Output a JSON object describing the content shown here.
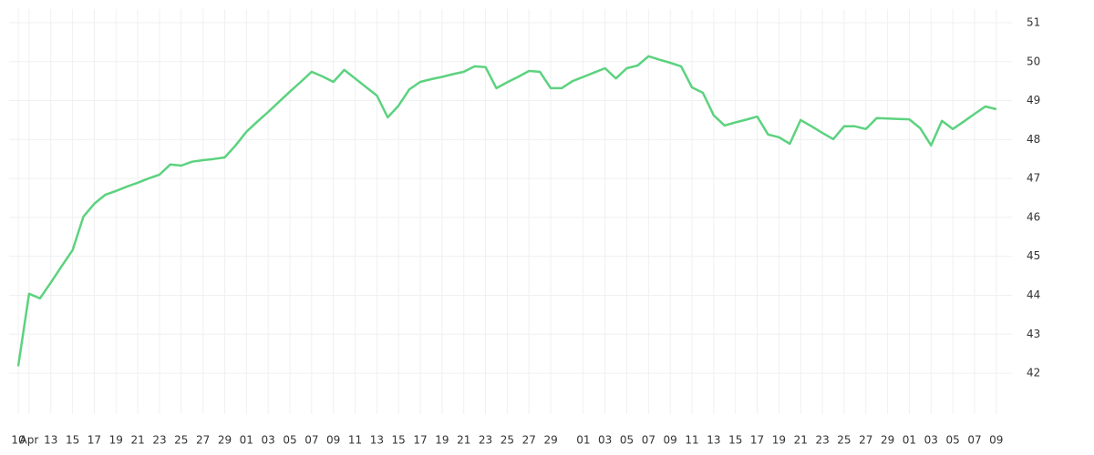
{
  "chart_data": {
    "type": "line",
    "categories": [
      "10",
      "Apr",
      null,
      "13",
      null,
      "15",
      null,
      "17",
      null,
      "19",
      null,
      "21",
      null,
      "23",
      null,
      "25",
      null,
      "27",
      null,
      "29",
      null,
      "01",
      null,
      "03",
      null,
      "05",
      null,
      "07",
      null,
      "09",
      null,
      "11",
      null,
      "13",
      null,
      "15",
      null,
      "17",
      null,
      "19",
      null,
      "21",
      null,
      "23",
      null,
      "25",
      null,
      "27",
      null,
      "29",
      null,
      null,
      "01",
      null,
      "03",
      null,
      "05",
      null,
      "07",
      null,
      "09",
      null,
      "11",
      null,
      "13",
      null,
      "15",
      null,
      "17",
      null,
      "19",
      null,
      "21",
      null,
      "23",
      null,
      "25",
      null,
      "27",
      null,
      "29",
      null,
      "01",
      null,
      "03",
      null,
      "05",
      null,
      "07",
      null,
      "09"
    ],
    "values": [
      42.18,
      44.04,
      43.92,
      44.33,
      44.75,
      45.16,
      46.02,
      46.35,
      46.58,
      46.68,
      46.79,
      46.89,
      47.0,
      47.1,
      47.36,
      47.33,
      47.43,
      47.47,
      47.5,
      47.54,
      47.85,
      48.2,
      48.46,
      48.71,
      48.97,
      49.23,
      49.48,
      49.74,
      49.62,
      49.48,
      49.79,
      49.57,
      49.35,
      49.13,
      48.57,
      48.87,
      49.29,
      49.48,
      49.55,
      49.61,
      49.68,
      49.74,
      49.88,
      49.86,
      49.32,
      49.47,
      49.61,
      49.76,
      49.74,
      49.32,
      49.32,
      49.5,
      49.61,
      49.72,
      49.83,
      49.57,
      49.83,
      49.9,
      50.14,
      50.05,
      49.97,
      49.88,
      49.34,
      49.2,
      48.62,
      48.36,
      48.44,
      48.51,
      48.59,
      48.13,
      48.06,
      47.89,
      48.5,
      48.34,
      48.17,
      48.01,
      48.34,
      48.34,
      48.27,
      48.55,
      48.54,
      48.53,
      48.52,
      48.29,
      47.85,
      48.48,
      48.27,
      48.46,
      48.66,
      48.85,
      48.78
    ],
    "color": "#5cd27f",
    "ylim": [
      40.95,
      51.35
    ],
    "yticks": [
      42,
      43,
      44,
      45,
      46,
      47,
      48,
      49,
      50,
      51
    ],
    "grid": true
  }
}
